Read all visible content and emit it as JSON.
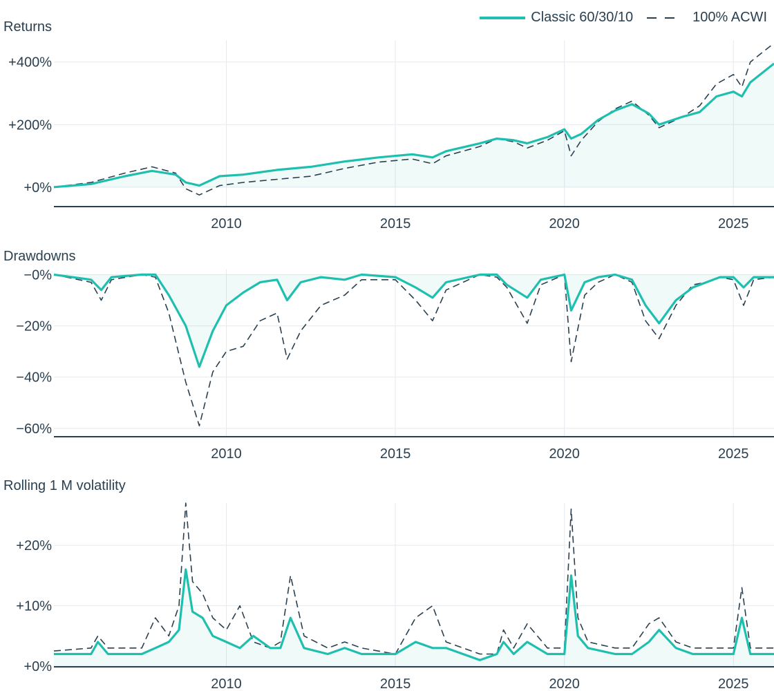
{
  "chart_data": {
    "type": "line",
    "legend": {
      "placement": "top-right",
      "entries": [
        {
          "name": "Classic 60/30/10",
          "style": "solid",
          "color": "#1fbfb0"
        },
        {
          "name": "100% ACWI",
          "style": "dashed",
          "color": "#2a3f4f"
        }
      ]
    },
    "xaxis": {
      "ticks": [
        2010,
        2015,
        2020,
        2025
      ],
      "tick_labels": [
        "2010",
        "2015",
        "2020",
        "2025"
      ],
      "range": [
        2004.9,
        2026.2
      ]
    },
    "panels": [
      {
        "id": "returns",
        "title": "Returns",
        "ylim": [
          -60,
          470
        ],
        "yticks": [
          0,
          200,
          400
        ],
        "ytick_labels": [
          "+0%",
          "+200%",
          "+400%"
        ],
        "series": [
          {
            "name": "Classic 60/30/10",
            "x": [
              2004.9,
              2006.0,
              2007.0,
              2007.8,
              2008.5,
              2008.8,
              2009.2,
              2009.8,
              2010.5,
              2011.5,
              2012.5,
              2013.5,
              2014.5,
              2015.5,
              2016.1,
              2016.5,
              2017.5,
              2018.0,
              2018.5,
              2018.9,
              2019.5,
              2020.0,
              2020.2,
              2020.5,
              2021.0,
              2021.5,
              2022.0,
              2022.5,
              2022.8,
              2023.5,
              2024.0,
              2024.5,
              2025.0,
              2025.25,
              2025.5,
              2026.2
            ],
            "y": [
              0,
              10,
              35,
              52,
              40,
              15,
              5,
              35,
              40,
              55,
              65,
              82,
              95,
              105,
              95,
              115,
              140,
              155,
              150,
              140,
              160,
              185,
              155,
              170,
              215,
              245,
              265,
              235,
              200,
              225,
              240,
              290,
              305,
              290,
              335,
              395
            ]
          },
          {
            "name": "100% ACWI",
            "x": [
              2004.9,
              2006.0,
              2007.0,
              2007.8,
              2008.5,
              2008.8,
              2009.2,
              2009.8,
              2010.5,
              2011.5,
              2012.5,
              2013.5,
              2014.5,
              2015.5,
              2016.1,
              2016.5,
              2017.5,
              2018.0,
              2018.5,
              2018.9,
              2019.5,
              2020.0,
              2020.2,
              2020.5,
              2021.0,
              2021.5,
              2022.0,
              2022.5,
              2022.8,
              2023.5,
              2024.0,
              2024.5,
              2025.0,
              2025.25,
              2025.5,
              2026.2
            ],
            "y": [
              0,
              15,
              45,
              65,
              45,
              -5,
              -25,
              5,
              15,
              25,
              35,
              60,
              80,
              90,
              75,
              100,
              130,
              155,
              145,
              125,
              150,
              180,
              100,
              150,
              210,
              250,
              275,
              230,
              190,
              225,
              260,
              330,
              360,
              320,
              400,
              460
            ]
          }
        ]
      },
      {
        "id": "drawdowns",
        "title": "Drawdowns",
        "ylim": [
          -63,
          2
        ],
        "yticks": [
          0,
          -20,
          -40,
          -60
        ],
        "ytick_labels": [
          "−0%",
          "−20%",
          "−40%",
          "−60%"
        ],
        "series": [
          {
            "name": "Classic 60/30/10",
            "x": [
              2004.9,
              2006.0,
              2006.3,
              2006.6,
              2007.5,
              2007.9,
              2008.3,
              2008.8,
              2009.2,
              2009.6,
              2010.0,
              2010.5,
              2011.0,
              2011.5,
              2011.8,
              2012.2,
              2012.8,
              2013.5,
              2014.0,
              2015.0,
              2015.6,
              2016.1,
              2016.5,
              2017.5,
              2018.0,
              2018.3,
              2018.9,
              2019.3,
              2020.0,
              2020.2,
              2020.6,
              2021.0,
              2021.5,
              2022.0,
              2022.4,
              2022.8,
              2023.3,
              2023.8,
              2024.2,
              2024.6,
              2025.0,
              2025.3,
              2025.6,
              2026.2
            ],
            "y": [
              0,
              -2,
              -6,
              -1,
              0,
              0,
              -8,
              -20,
              -36,
              -22,
              -12,
              -7,
              -3,
              -2,
              -10,
              -3,
              -1,
              -2,
              0,
              -1,
              -5,
              -9,
              -3,
              0,
              0,
              -4,
              -9,
              -2,
              0,
              -14,
              -3,
              -1,
              0,
              -2,
              -12,
              -19,
              -10,
              -5,
              -3,
              -1,
              -1,
              -5,
              -1,
              -1
            ]
          },
          {
            "name": "100% ACWI",
            "x": [
              2004.9,
              2006.0,
              2006.3,
              2006.6,
              2007.5,
              2007.9,
              2008.3,
              2008.8,
              2009.2,
              2009.6,
              2010.0,
              2010.5,
              2011.0,
              2011.5,
              2011.8,
              2012.2,
              2012.8,
              2013.5,
              2014.0,
              2015.0,
              2015.6,
              2016.1,
              2016.5,
              2017.5,
              2018.0,
              2018.3,
              2018.9,
              2019.3,
              2020.0,
              2020.2,
              2020.6,
              2021.0,
              2021.5,
              2022.0,
              2022.4,
              2022.8,
              2023.3,
              2023.8,
              2024.2,
              2024.6,
              2025.0,
              2025.3,
              2025.6,
              2026.2
            ],
            "y": [
              0,
              -3,
              -10,
              -2,
              0,
              -1,
              -15,
              -42,
              -59,
              -38,
              -30,
              -28,
              -18,
              -15,
              -33,
              -22,
              -12,
              -8,
              -2,
              -2,
              -10,
              -18,
              -6,
              0,
              -1,
              -5,
              -19,
              -4,
              0,
              -34,
              -8,
              -3,
              0,
              -3,
              -18,
              -25,
              -12,
              -4,
              -3,
              -1,
              -2,
              -12,
              -2,
              -1
            ]
          }
        ]
      },
      {
        "id": "volatility",
        "title": "Rolling 1 M volatility",
        "ylim": [
          0,
          27
        ],
        "yticks": [
          0,
          10,
          20
        ],
        "ytick_labels": [
          "+0%",
          "+10%",
          "+20%"
        ],
        "series": [
          {
            "name": "Classic 60/30/10",
            "x": [
              2004.9,
              2006.0,
              2006.2,
              2006.5,
              2007.5,
              2007.9,
              2008.3,
              2008.6,
              2008.8,
              2009.0,
              2009.3,
              2009.6,
              2010.0,
              2010.4,
              2010.8,
              2011.3,
              2011.6,
              2011.9,
              2012.3,
              2013.0,
              2013.5,
              2014.0,
              2015.0,
              2015.6,
              2016.1,
              2016.5,
              2017.5,
              2018.0,
              2018.2,
              2018.5,
              2018.9,
              2019.5,
              2020.0,
              2020.2,
              2020.4,
              2020.7,
              2021.5,
              2022.0,
              2022.5,
              2022.8,
              2023.3,
              2023.8,
              2024.5,
              2025.0,
              2025.25,
              2025.5,
              2026.2
            ],
            "y": [
              2,
              2,
              4,
              2,
              2,
              3,
              4,
              6,
              16,
              9,
              8,
              5,
              4,
              3,
              5,
              3,
              3,
              8,
              3,
              2,
              3,
              2,
              2,
              4,
              3,
              3,
              1,
              2,
              4,
              2,
              4,
              2,
              2,
              15,
              5,
              3,
              2,
              2,
              4,
              6,
              3,
              2,
              2,
              2,
              8,
              2,
              2
            ]
          },
          {
            "name": "100% ACWI",
            "x": [
              2004.9,
              2006.0,
              2006.2,
              2006.5,
              2007.5,
              2007.9,
              2008.3,
              2008.6,
              2008.8,
              2009.0,
              2009.3,
              2009.6,
              2010.0,
              2010.4,
              2010.8,
              2011.3,
              2011.6,
              2011.9,
              2012.3,
              2013.0,
              2013.5,
              2014.0,
              2015.0,
              2015.6,
              2016.1,
              2016.5,
              2017.5,
              2018.0,
              2018.2,
              2018.5,
              2018.9,
              2019.5,
              2020.0,
              2020.2,
              2020.4,
              2020.7,
              2021.5,
              2022.0,
              2022.5,
              2022.8,
              2023.3,
              2023.8,
              2024.5,
              2025.0,
              2025.25,
              2025.5,
              2026.2
            ],
            "y": [
              2.5,
              3,
              5,
              3,
              3,
              8,
              5,
              10,
              27,
              14,
              12,
              8,
              6,
              10,
              4,
              3,
              4,
              15,
              5,
              3,
              4,
              3,
              2,
              8,
              10,
              4,
              2,
              2,
              6,
              3,
              7,
              3,
              3,
              26,
              8,
              4,
              3,
              3,
              7,
              8,
              4,
              3,
              3,
              3,
              13,
              3,
              3
            ]
          }
        ]
      }
    ]
  }
}
